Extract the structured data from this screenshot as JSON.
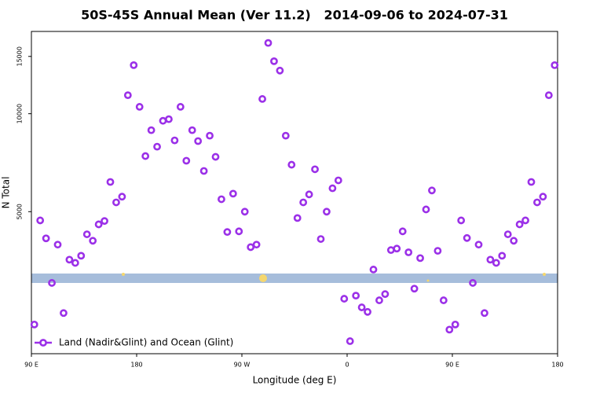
{
  "chart_data": {
    "type": "scatter",
    "title": "50S-45S Annual Mean (Ver 11.2)   2014-09-06 to 2024-07-31",
    "x_label": "Longitude (deg E)",
    "y_label": "N Total",
    "log_y": true,
    "xlim": [
      90,
      540
    ],
    "ylim": [
      1830,
      17900
    ],
    "xticks": [
      {
        "value": 90,
        "label": "90 E"
      },
      {
        "value": 180,
        "label": "180"
      },
      {
        "value": 270,
        "label": "90 W"
      },
      {
        "value": 360,
        "label": "0"
      },
      {
        "value": 450,
        "label": "90 E"
      },
      {
        "value": 540,
        "label": "180"
      }
    ],
    "yticks": [
      5000,
      10000,
      15000
    ],
    "legend_position": "lower-left",
    "x": [
      92.5,
      97.5,
      102.5,
      107.5,
      112.5,
      117.5,
      122.5,
      127.5,
      132.5,
      137.5,
      142.5,
      147.5,
      152.5,
      157.5,
      162.5,
      167.5,
      172.5,
      177.5,
      182.5,
      187.5,
      192.5,
      197.5,
      202.5,
      207.5,
      212.5,
      217.5,
      222.5,
      227.5,
      232.5,
      237.5,
      242.5,
      247.5,
      252.5,
      257.5,
      262.5,
      267.5,
      272.5,
      277.5,
      282.5,
      287.5,
      292.5,
      297.5,
      302.5,
      307.5,
      312.5,
      317.5,
      322.5,
      327.5,
      332.5,
      337.5,
      342.5,
      347.5,
      352.5,
      357.5,
      362.5,
      367.5,
      372.5,
      377.5,
      382.5,
      387.5,
      392.5,
      397.5,
      402.5,
      407.5,
      412.5,
      417.5,
      422.5,
      427.5,
      432.5,
      437.5,
      442.5,
      447.5,
      452.5,
      457.5,
      462.5,
      467.5,
      472.5,
      477.5,
      482.5,
      487.5,
      492.5,
      497.5,
      502.5,
      507.5,
      512.5,
      517.5,
      522.5,
      527.5,
      532.5,
      537.5
    ],
    "series": [
      {
        "name": "Land (Nadir&Glint) and Ocean (Glint)",
        "color": "#9b30e8",
        "values": [
          2250,
          4700,
          4140,
          3020,
          3960,
          2440,
          3560,
          3480,
          3660,
          4260,
          4070,
          4570,
          4680,
          6170,
          5340,
          5560,
          11400,
          14100,
          10500,
          7410,
          8900,
          7920,
          9510,
          9620,
          8280,
          10500,
          7170,
          8900,
          8240,
          6670,
          8560,
          7370,
          5460,
          4330,
          5680,
          4350,
          5000,
          3890,
          3960,
          11100,
          16500,
          14500,
          13570,
          8560,
          6970,
          4780,
          5340,
          5650,
          6750,
          4120,
          5000,
          5900,
          6240,
          2700,
          2000,
          2760,
          2540,
          2460,
          3320,
          2670,
          2790,
          3810,
          3850,
          4350,
          3750,
          2900,
          3600,
          5080,
          5810,
          3790,
          2670,
          2170,
          2250,
          4700,
          4150,
          3020,
          3960,
          2440,
          3560,
          3480,
          3660,
          4260,
          4070,
          4570,
          4700,
          6170,
          5340,
          5560,
          11400,
          14100
        ]
      }
    ]
  }
}
